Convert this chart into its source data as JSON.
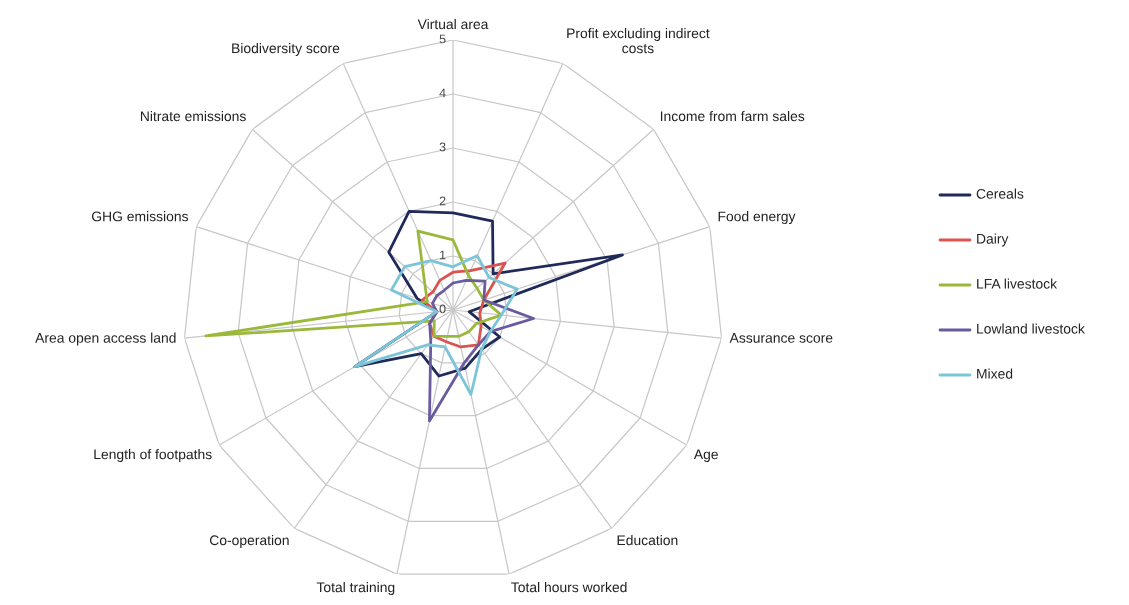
{
  "chart_data": {
    "type": "radar",
    "categories": [
      "Virtual area",
      "Profit excluding indirect\ncosts",
      "Income from farm sales",
      "Food energy",
      "Assurance score",
      "Age",
      "Education",
      "Total hours worked",
      "Total training",
      "Co-operation",
      "Length of footpaths",
      "Area open access land",
      "GHG emissions",
      "Nitrate emissions",
      "Biodiversity score"
    ],
    "series": [
      {
        "name": "Cereals",
        "color": "#1f2a5a",
        "values": [
          1.8,
          1.8,
          1.0,
          3.3,
          0.3,
          1.0,
          0.9,
          1.1,
          1.25,
          1.0,
          2.1,
          0.3,
          0.7,
          1.6,
          2.0
        ]
      },
      {
        "name": "Dairy",
        "color": "#d9534f",
        "values": [
          0.7,
          0.8,
          1.3,
          0.6,
          0.5,
          0.6,
          0.8,
          0.7,
          0.6,
          0.6,
          0.5,
          0.3,
          0.6,
          0.5,
          0.6
        ]
      },
      {
        "name": "LFA livestock",
        "color": "#9ab83a",
        "values": [
          1.3,
          0.7,
          0.6,
          0.6,
          0.9,
          0.5,
          0.5,
          0.5,
          0.5,
          0.6,
          0.4,
          4.6,
          0.5,
          0.7,
          1.6
        ]
      },
      {
        "name": "Lowland livestock",
        "color": "#6a5a9e",
        "values": [
          0.5,
          0.6,
          0.8,
          0.6,
          1.5,
          0.8,
          0.8,
          1.0,
          2.1,
          0.7,
          0.5,
          0.3,
          0.4,
          0.4,
          0.4
        ]
      },
      {
        "name": "Mixed",
        "color": "#7cc4d8",
        "values": [
          0.8,
          1.1,
          0.9,
          1.25,
          0.9,
          0.8,
          0.9,
          1.6,
          0.7,
          0.8,
          2.1,
          0.3,
          1.2,
          1.2,
          1.0
        ]
      }
    ],
    "ylim": [
      0,
      5
    ],
    "yticks": [
      0,
      1,
      2,
      3,
      4,
      5
    ],
    "grid": true,
    "legend": "right"
  }
}
